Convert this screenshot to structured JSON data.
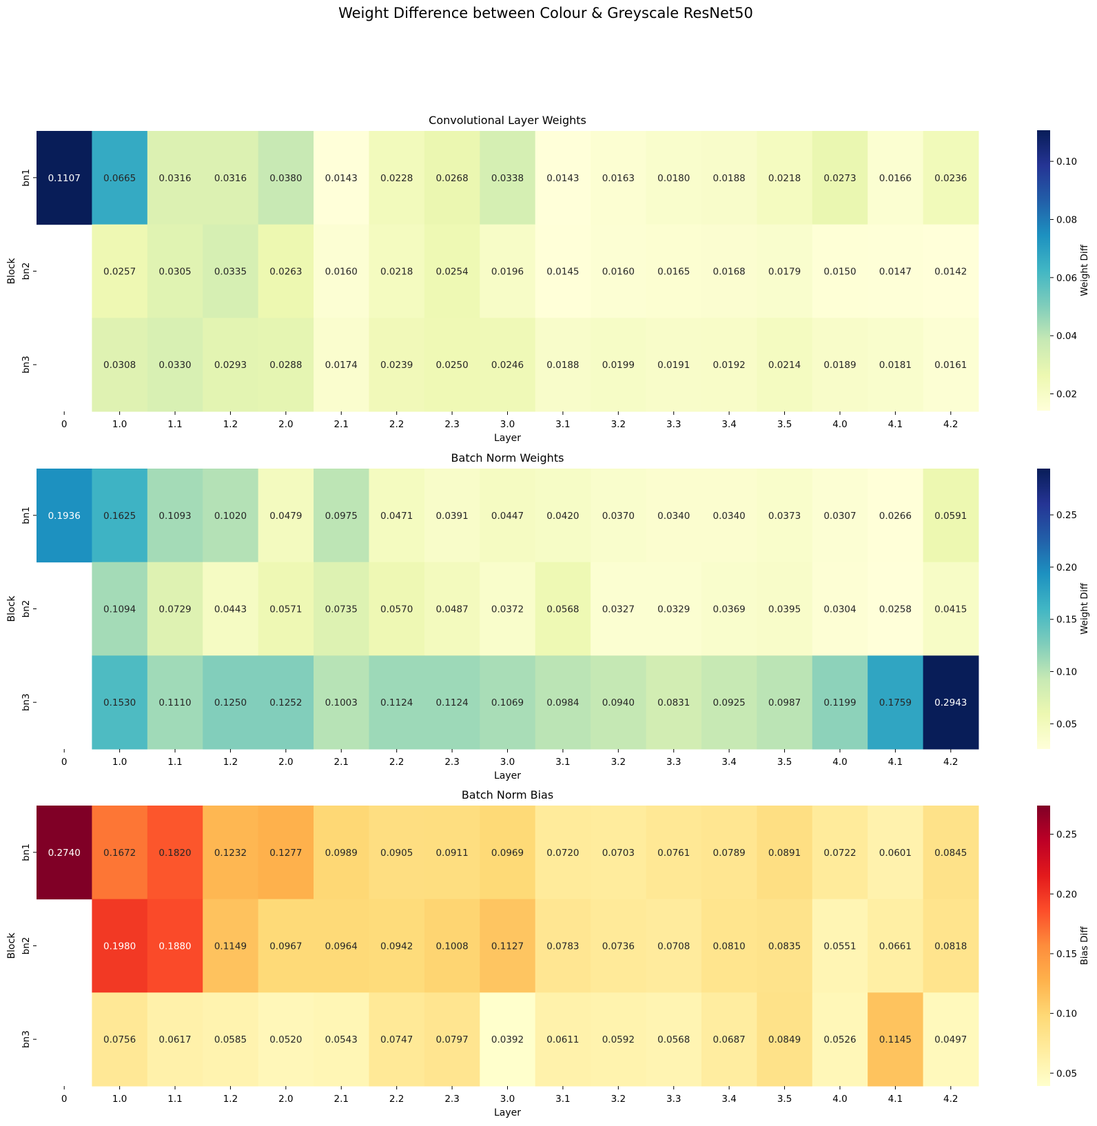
{
  "figure": {
    "suptitle": "Weight Difference between Colour & Greyscale ResNet50"
  },
  "chart_data": [
    {
      "type": "heatmap",
      "title": "Convolutional Layer Weights",
      "xlabel": "Layer",
      "ylabel": "Block",
      "x_categories": [
        "0",
        "1.0",
        "1.1",
        "1.2",
        "2.0",
        "2.1",
        "2.2",
        "2.3",
        "3.0",
        "3.1",
        "3.2",
        "3.3",
        "3.4",
        "3.5",
        "4.0",
        "4.1",
        "4.2"
      ],
      "y_categories": [
        "bn1",
        "bn2",
        "bn3"
      ],
      "values": [
        [
          0.1107,
          0.0665,
          0.0316,
          0.0316,
          0.038,
          0.0143,
          0.0228,
          0.0268,
          0.0338,
          0.0143,
          0.0163,
          0.018,
          0.0188,
          0.0218,
          0.0273,
          0.0166,
          0.0236
        ],
        [
          null,
          0.0257,
          0.0305,
          0.0335,
          0.0263,
          0.016,
          0.0218,
          0.0254,
          0.0196,
          0.0145,
          0.016,
          0.0165,
          0.0168,
          0.0179,
          0.015,
          0.0147,
          0.0142
        ],
        [
          null,
          0.0308,
          0.033,
          0.0293,
          0.0288,
          0.0174,
          0.0239,
          0.025,
          0.0246,
          0.0188,
          0.0199,
          0.0191,
          0.0192,
          0.0214,
          0.0189,
          0.0181,
          0.0161
        ]
      ],
      "colormap": "YlGnBu",
      "vmin": 0.0142,
      "vmax": 0.1107,
      "colorbar_label": "Weight Diff",
      "colorbar_ticks": [
        0.02,
        0.04,
        0.06,
        0.08,
        0.1
      ],
      "colorbar_tick_labels": [
        "0.02",
        "0.04",
        "0.06",
        "0.08",
        "0.10"
      ]
    },
    {
      "type": "heatmap",
      "title": "Batch Norm Weights",
      "xlabel": "Layer",
      "ylabel": "Block",
      "x_categories": [
        "0",
        "1.0",
        "1.1",
        "1.2",
        "2.0",
        "2.1",
        "2.2",
        "2.3",
        "3.0",
        "3.1",
        "3.2",
        "3.3",
        "3.4",
        "3.5",
        "4.0",
        "4.1",
        "4.2"
      ],
      "y_categories": [
        "bn1",
        "bn2",
        "bn3"
      ],
      "values": [
        [
          0.1936,
          0.1625,
          0.1093,
          0.102,
          0.0479,
          0.0975,
          0.0471,
          0.0391,
          0.0447,
          0.042,
          0.037,
          0.034,
          0.034,
          0.0373,
          0.0307,
          0.0266,
          0.0591
        ],
        [
          null,
          0.1094,
          0.0729,
          0.0443,
          0.0571,
          0.0735,
          0.057,
          0.0487,
          0.0372,
          0.0568,
          0.0327,
          0.0329,
          0.0369,
          0.0395,
          0.0304,
          0.0258,
          0.0415
        ],
        [
          null,
          0.153,
          0.111,
          0.125,
          0.1252,
          0.1003,
          0.1124,
          0.1124,
          0.1069,
          0.0984,
          0.094,
          0.0831,
          0.0925,
          0.0987,
          0.1199,
          0.1759,
          0.2943
        ]
      ],
      "colormap": "YlGnBu",
      "vmin": 0.0258,
      "vmax": 0.2943,
      "colorbar_label": "Weight Diff",
      "colorbar_ticks": [
        0.05,
        0.1,
        0.15,
        0.2,
        0.25
      ],
      "colorbar_tick_labels": [
        "0.05",
        "0.10",
        "0.15",
        "0.20",
        "0.25"
      ]
    },
    {
      "type": "heatmap",
      "title": "Batch Norm Bias",
      "xlabel": "Layer",
      "ylabel": "Block",
      "x_categories": [
        "0",
        "1.0",
        "1.1",
        "1.2",
        "2.0",
        "2.1",
        "2.2",
        "2.3",
        "3.0",
        "3.1",
        "3.2",
        "3.3",
        "3.4",
        "3.5",
        "4.0",
        "4.1",
        "4.2"
      ],
      "y_categories": [
        "bn1",
        "bn2",
        "bn3"
      ],
      "values": [
        [
          0.274,
          0.1672,
          0.182,
          0.1232,
          0.1277,
          0.0989,
          0.0905,
          0.0911,
          0.0969,
          0.072,
          0.0703,
          0.0761,
          0.0789,
          0.0891,
          0.0722,
          0.0601,
          0.0845
        ],
        [
          null,
          0.198,
          0.188,
          0.1149,
          0.0967,
          0.0964,
          0.0942,
          0.1008,
          0.1127,
          0.0783,
          0.0736,
          0.0708,
          0.081,
          0.0835,
          0.0551,
          0.0661,
          0.0818
        ],
        [
          null,
          0.0756,
          0.0617,
          0.0585,
          0.052,
          0.0543,
          0.0747,
          0.0797,
          0.0392,
          0.0611,
          0.0592,
          0.0568,
          0.0687,
          0.0849,
          0.0526,
          0.1145,
          0.0497
        ]
      ],
      "colormap": "YlOrRd",
      "vmin": 0.0392,
      "vmax": 0.274,
      "colorbar_label": "Bias Diff",
      "colorbar_ticks": [
        0.05,
        0.1,
        0.15,
        0.2,
        0.25
      ],
      "colorbar_tick_labels": [
        "0.05",
        "0.10",
        "0.15",
        "0.20",
        "0.25"
      ]
    }
  ]
}
